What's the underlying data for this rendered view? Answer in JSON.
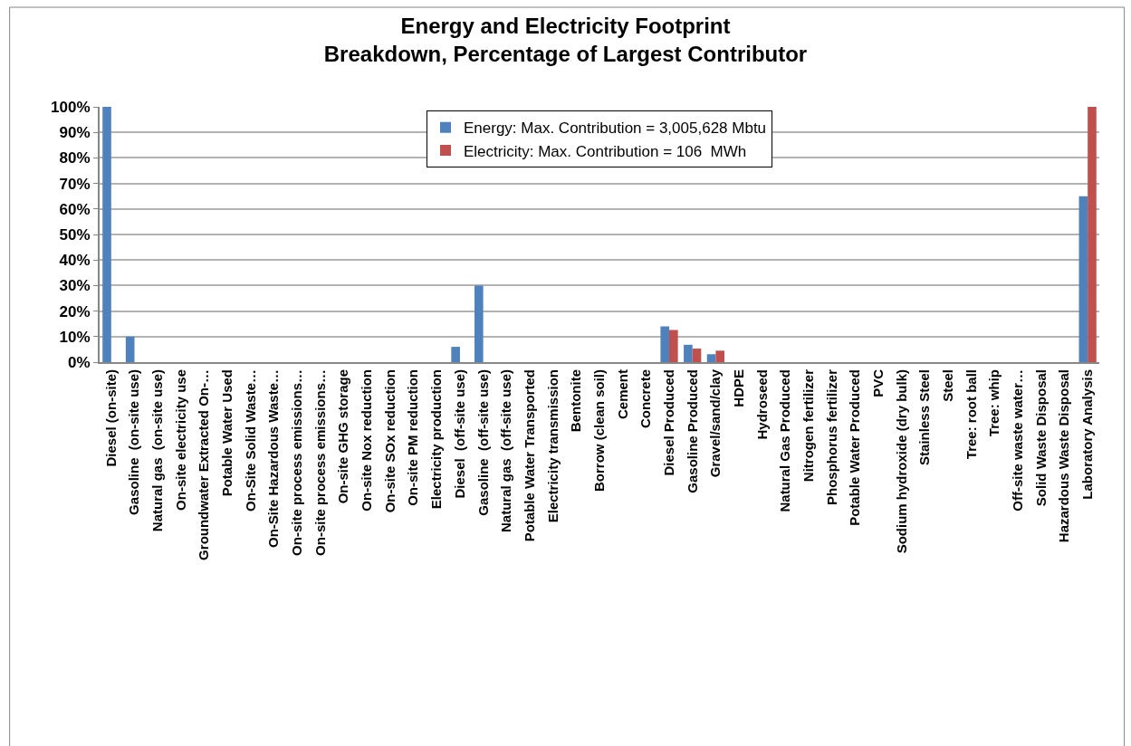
{
  "chart_data": {
    "type": "bar",
    "title": "Energy and Electricity Footprint\nBreakdown, Percentage of Largest Contributor",
    "categories": [
      "Diesel (on-site)",
      "Gasoline  (on-site use)",
      "Natural gas  (on-site use)",
      "On-site electricity use",
      "Groundwater Extracted On-…",
      "Potable Water Used",
      "On-Site Solid Waste…",
      "On-Site Hazardous Waste…",
      "On-site process emissions…",
      "On-site process emissions…",
      "On-site GHG storage",
      "On-site Nox reduction",
      "On-site SOx reduction",
      "On-site PM reduction",
      "Electricity production",
      "Diesel  (off-site use)",
      "Gasoline  (off-site use)",
      "Natural gas  (off-site use)",
      "Potable Water Transported",
      "Electricity transmission",
      "Bentonite",
      "Borrow (clean soil)",
      "Cement",
      "Concrete",
      "Diesel Produced",
      "Gasoline Produced",
      "Gravel/sand/clay",
      "HDPE",
      "Hydroseed",
      "Natural Gas Produced",
      "Nitrogen fertilizer",
      "Phosphorus fertilizer",
      "Potable Water Produced",
      "PVC",
      "Sodium hydroxide (dry bulk)",
      "Stainless Steel",
      "Steel",
      "Tree: root ball",
      "Tree: whip",
      "Off-site waste water…",
      "Solid Waste Disposal",
      "Hazardous Waste Disposal",
      "Laboratory Analysis"
    ],
    "series": [
      {
        "name": "Energy: Max. Contribution = 3,005,628 Mbtu",
        "color": "#4f81bd",
        "values": [
          100,
          10,
          0,
          0,
          0,
          0,
          0,
          0,
          0,
          0,
          0,
          0,
          0,
          0,
          0,
          6,
          30,
          0,
          0,
          0,
          0,
          0,
          0,
          0,
          14,
          6.8,
          3.1,
          0,
          0,
          0,
          0,
          0,
          0,
          0,
          0,
          0,
          0,
          0,
          0,
          0,
          0,
          0,
          65
        ]
      },
      {
        "name": "Electricity: Max. Contribution = 106  MWh",
        "color": "#c0504d",
        "values": [
          0,
          0,
          0,
          0,
          0,
          0,
          0,
          0,
          0,
          0,
          0,
          0,
          0,
          0,
          0,
          0,
          0,
          0,
          0,
          0,
          0,
          0,
          0,
          0,
          12.6,
          5.3,
          4.5,
          0,
          0,
          0,
          0,
          0,
          0,
          0,
          0,
          0,
          0,
          0,
          0,
          0,
          0,
          0,
          100
        ]
      }
    ],
    "ylim": [
      0,
      100
    ],
    "yticks": [
      {
        "value": 0,
        "label": "0%"
      },
      {
        "value": 10,
        "label": "10%"
      },
      {
        "value": 20,
        "label": "20%"
      },
      {
        "value": 30,
        "label": "30%"
      },
      {
        "value": 40,
        "label": "40%"
      },
      {
        "value": 50,
        "label": "50%"
      },
      {
        "value": 60,
        "label": "60%"
      },
      {
        "value": 70,
        "label": "70%"
      },
      {
        "value": 80,
        "label": "80%"
      },
      {
        "value": 90,
        "label": "90%"
      },
      {
        "value": 100,
        "label": "100%"
      }
    ],
    "grid": "y",
    "legend": "top"
  }
}
